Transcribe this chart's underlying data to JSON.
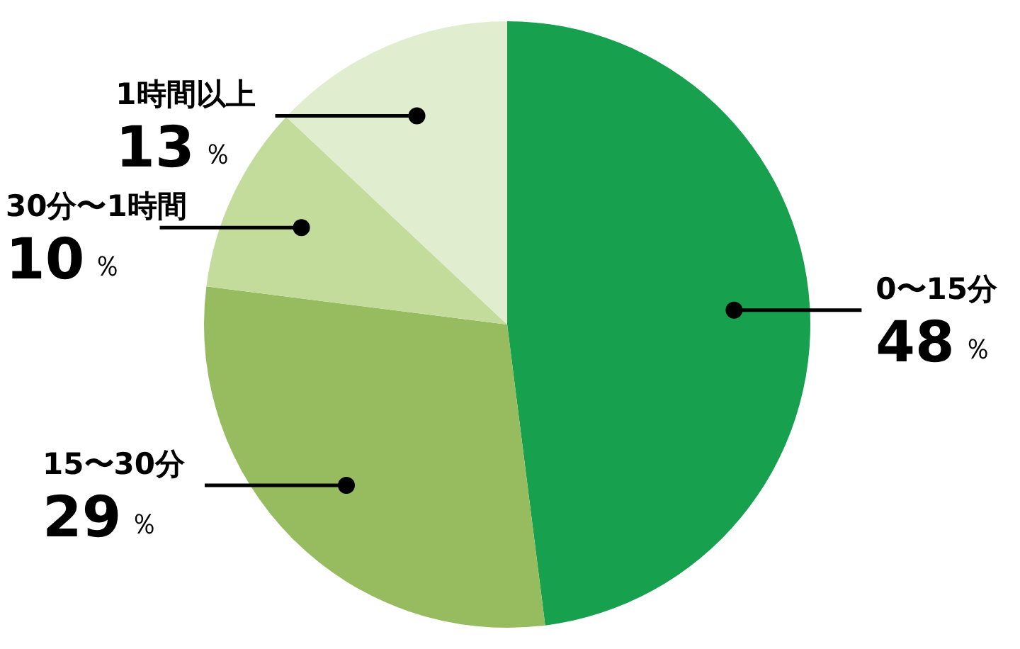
{
  "chart_data": {
    "type": "pie",
    "categories": [
      "0〜15分",
      "15〜30分",
      "30分〜1時間",
      "1時間以上"
    ],
    "values": [
      48,
      29,
      10,
      13
    ],
    "colors": [
      "#17a04e",
      "#97bb5f",
      "#c3dc9c",
      "#e0edcf"
    ],
    "value_labels": [
      "48％",
      "29％",
      "10％",
      "13％"
    ],
    "legend": false
  }
}
